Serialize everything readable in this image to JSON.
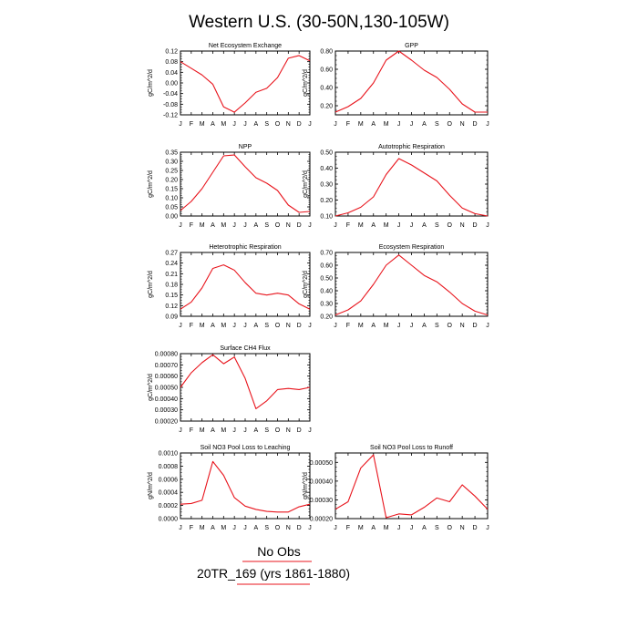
{
  "figure": {
    "title": "Western U.S. (30-50N,130-105W)",
    "legend_line1": "No Obs",
    "legend_line2": "20TR_169 (yrs 1861-1880)",
    "series_color": "#e8141c"
  },
  "months": [
    "J",
    "F",
    "M",
    "A",
    "M",
    "J",
    "J",
    "A",
    "S",
    "O",
    "N",
    "D",
    "J"
  ],
  "chart_data": [
    {
      "type": "line",
      "title": "Net Ecosystem Exchange",
      "ylabel": "gC/m^2/d",
      "ylim": [
        -0.12,
        0.12
      ],
      "yticks": [
        "0.12",
        "0.08",
        "0.04",
        "0.00",
        "-0.04",
        "-0.08",
        "-0.12"
      ],
      "values": [
        0.08,
        0.055,
        0.03,
        -0.005,
        -0.09,
        -0.11,
        -0.075,
        -0.035,
        -0.02,
        0.02,
        0.093,
        0.103,
        0.083
      ]
    },
    {
      "type": "line",
      "title": "GPP",
      "ylabel": "gC/m^2/d",
      "ylim": [
        0.1,
        0.8
      ],
      "yticks": [
        "0.80",
        "0.60",
        "0.40",
        "0.20"
      ],
      "values": [
        0.13,
        0.19,
        0.28,
        0.45,
        0.7,
        0.8,
        0.7,
        0.59,
        0.51,
        0.38,
        0.22,
        0.13,
        0.13
      ]
    },
    {
      "type": "line",
      "title": "NPP",
      "ylabel": "gC/m^2/d",
      "ylim": [
        0,
        0.35
      ],
      "yticks": [
        "0.35",
        "0.30",
        "0.25",
        "0.20",
        "0.15",
        "0.10",
        "0.05",
        "0.00"
      ],
      "values": [
        0.03,
        0.08,
        0.15,
        0.24,
        0.33,
        0.335,
        0.27,
        0.21,
        0.18,
        0.14,
        0.06,
        0.02,
        0.025
      ]
    },
    {
      "type": "line",
      "title": "Autotrophic Respiration",
      "ylabel": "gC/m^2/d",
      "ylim": [
        0.1,
        0.5
      ],
      "yticks": [
        "0.50",
        "0.40",
        "0.30",
        "0.20",
        "0.10"
      ],
      "values": [
        0.1,
        0.12,
        0.155,
        0.22,
        0.36,
        0.46,
        0.42,
        0.37,
        0.32,
        0.23,
        0.15,
        0.115,
        0.1
      ]
    },
    {
      "type": "line",
      "title": "Heterotrophic Respiration",
      "ylabel": "gC/m^2/d",
      "ylim": [
        0.09,
        0.27
      ],
      "yticks": [
        "0.27",
        "0.24",
        "0.21",
        "0.18",
        "0.15",
        "0.12",
        "0.09"
      ],
      "values": [
        0.11,
        0.13,
        0.17,
        0.225,
        0.235,
        0.22,
        0.185,
        0.155,
        0.15,
        0.155,
        0.15,
        0.125,
        0.11
      ]
    },
    {
      "type": "line",
      "title": "Ecosystem Respiration",
      "ylabel": "gC/m^2/d",
      "ylim": [
        0.2,
        0.7
      ],
      "yticks": [
        "0.70",
        "0.60",
        "0.50",
        "0.40",
        "0.30",
        "0.20"
      ],
      "values": [
        0.21,
        0.25,
        0.32,
        0.45,
        0.6,
        0.68,
        0.6,
        0.52,
        0.47,
        0.39,
        0.3,
        0.24,
        0.21
      ]
    },
    {
      "type": "line",
      "title": "Surface CH4 Flux",
      "ylabel": "gC/m^2/d",
      "ylim": [
        0.0002,
        0.0008
      ],
      "yticks": [
        "0.00080",
        "0.00070",
        "0.00060",
        "0.00050",
        "0.00040",
        "0.00030",
        "0.00020"
      ],
      "values": [
        0.0005,
        0.00063,
        0.00072,
        0.00079,
        0.00071,
        0.00077,
        0.00058,
        0.00031,
        0.00038,
        0.00048,
        0.00049,
        0.00048,
        0.0005
      ]
    },
    {
      "type": "line",
      "title": "Soil NO3 Pool Loss to Leaching",
      "ylabel": "gN/m^2/d",
      "ylim": [
        0,
        0.001
      ],
      "yticks": [
        "0.0010",
        "0.0008",
        "0.0006",
        "0.0004",
        "0.0002",
        "0.0000"
      ],
      "values": [
        0.00022,
        0.00023,
        0.00028,
        0.00087,
        0.00066,
        0.00032,
        0.00019,
        0.00014,
        0.00011,
        0.0001,
        0.0001,
        0.00018,
        0.00022
      ]
    },
    {
      "type": "line",
      "title": "Soil NO3 Pool Loss to Runoff",
      "ylabel": "gN/m^2/d",
      "ylim": [
        0.0002,
        0.00055
      ],
      "yticks": [
        "0.00050",
        "0.00040",
        "0.00030",
        "0.00020"
      ],
      "values": [
        0.00025,
        0.00029,
        0.00047,
        0.00054,
        0.000205,
        0.000225,
        0.00022,
        0.00026,
        0.00031,
        0.00029,
        0.00038,
        0.00032,
        0.00025
      ]
    }
  ]
}
